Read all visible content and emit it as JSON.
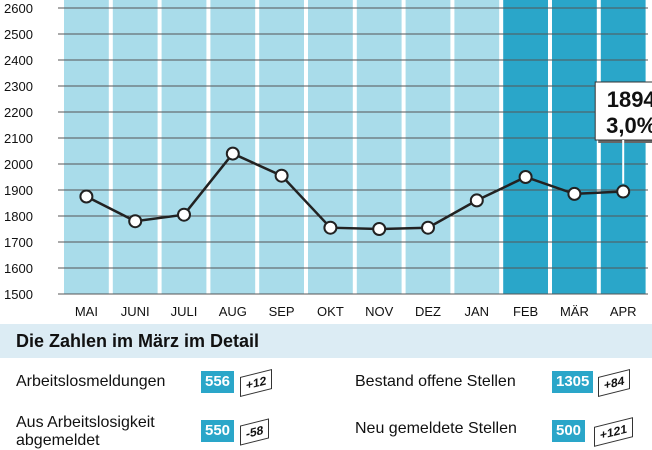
{
  "chart_data": {
    "type": "line",
    "categories": [
      "MAI",
      "JUNI",
      "JULI",
      "AUG",
      "SEP",
      "OKT",
      "NOV",
      "DEZ",
      "JAN",
      "FEB",
      "MÄR",
      "APR"
    ],
    "values": [
      1875,
      1780,
      1805,
      2040,
      1955,
      1755,
      1750,
      1755,
      1860,
      1950,
      1885,
      1894
    ],
    "highlighted_categories": [
      "FEB",
      "MÄR",
      "APR"
    ],
    "ylim": [
      1500,
      2600
    ],
    "yticks": [
      "2600",
      "2500",
      "2400",
      "2300",
      "2200",
      "2100",
      "2000",
      "1900",
      "1800",
      "1700",
      "1600",
      "1500"
    ],
    "callout": {
      "value": "1894",
      "rate": "3,0%"
    },
    "grid": true,
    "colors": {
      "column": "#a9dcea",
      "column_highlight": "#2aa6c9",
      "line": "#222222",
      "marker_fill": "#ffffff"
    }
  },
  "detail": {
    "title": "Die Zahlen im März im Detail",
    "left": [
      {
        "label_lines": [
          "Arbeitslosmeldungen"
        ],
        "value": "556",
        "change": "+12"
      },
      {
        "label_lines": [
          "Aus Arbeitslosigkeit",
          "abgemeldet"
        ],
        "value": "550",
        "change": "-58"
      }
    ],
    "right": [
      {
        "label_lines": [
          "Bestand offene Stellen"
        ],
        "value": "1305",
        "change": "+84"
      },
      {
        "label_lines": [
          "Neu gemeldete Stellen"
        ],
        "value": "500",
        "change": "+121"
      }
    ],
    "colors": {
      "header_bg": "#dcecf4",
      "value_box": "#2aa6c9"
    }
  }
}
